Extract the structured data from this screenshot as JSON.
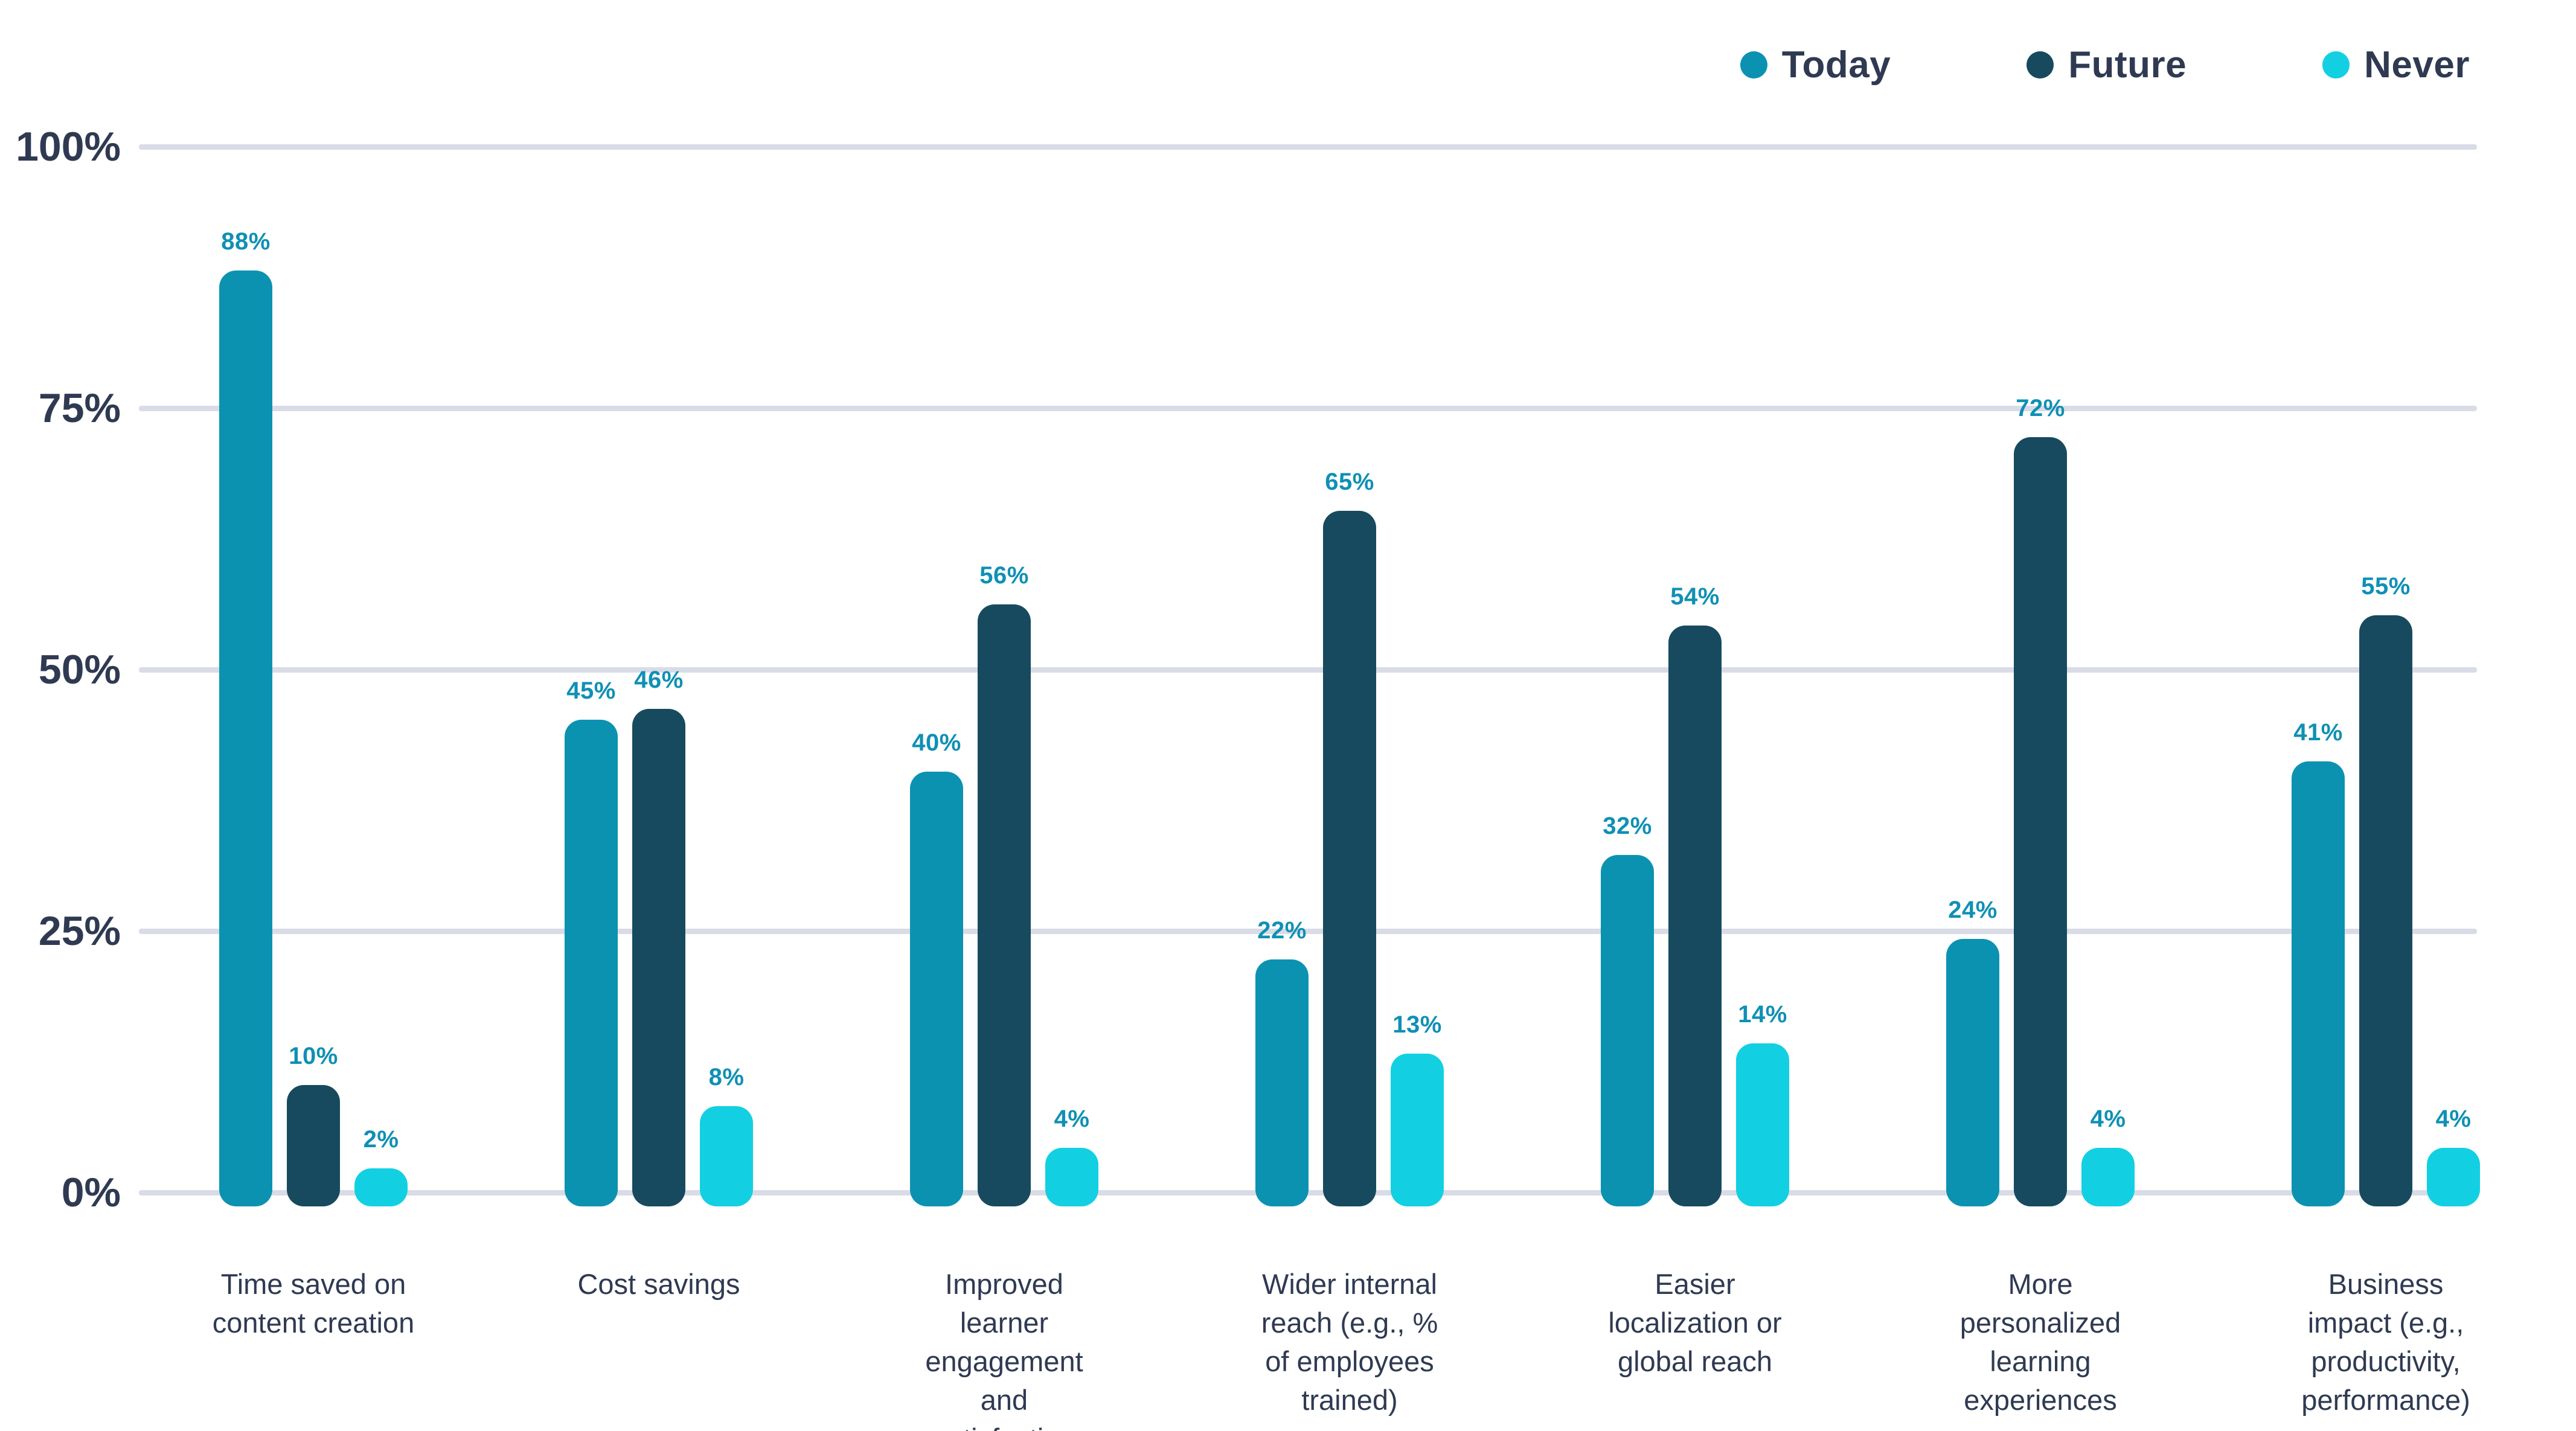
{
  "chart_data": {
    "type": "bar",
    "title": "",
    "categories": [
      "Time saved on\ncontent creation",
      "Cost savings",
      "Improved\nlearner\nengagement\nand\nsatisfaction",
      "Wider internal\nreach (e.g., %\nof employees\ntrained)",
      "Easier\nlocalization or\nglobal reach",
      "More\npersonalized\nlearning\nexperiences",
      "Business\nimpact (e.g.,\nproductivity,\nperformance)"
    ],
    "series": [
      {
        "name": "Today",
        "color": "#0C92B1",
        "values": [
          88,
          45,
          40,
          22,
          32,
          24,
          41
        ]
      },
      {
        "name": "Future",
        "color": "#174A5E",
        "values": [
          10,
          46,
          56,
          65,
          54,
          72,
          55
        ]
      },
      {
        "name": "Never",
        "color": "#12D0E2",
        "values": [
          2,
          8,
          4,
          13,
          14,
          4,
          4
        ]
      }
    ],
    "value_suffix": "%",
    "yticks": [
      "100%",
      "75%",
      "50%",
      "25%",
      "0%"
    ],
    "ylim": [
      0,
      100
    ],
    "grid": true,
    "legend_position": "top-right",
    "colors": {
      "data_label": "#0F90B4",
      "axis_text": "#2F3A52",
      "gridline": "#D9DCE6",
      "background": "#FFFFFF"
    }
  }
}
